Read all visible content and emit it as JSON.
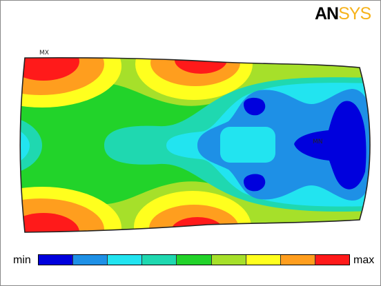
{
  "logo": {
    "text_dark": "AN",
    "text_accent": "SYS"
  },
  "plot": {
    "max_marker": "MX",
    "min_marker": "MN"
  },
  "legend": {
    "min_label": "min",
    "max_label": "max",
    "colors": [
      "#0000dd",
      "#1e90e6",
      "#22e4f0",
      "#1fd8b0",
      "#22d32a",
      "#a6e02a",
      "#ffff1e",
      "#ff9e1e",
      "#ff1a1a"
    ]
  }
}
